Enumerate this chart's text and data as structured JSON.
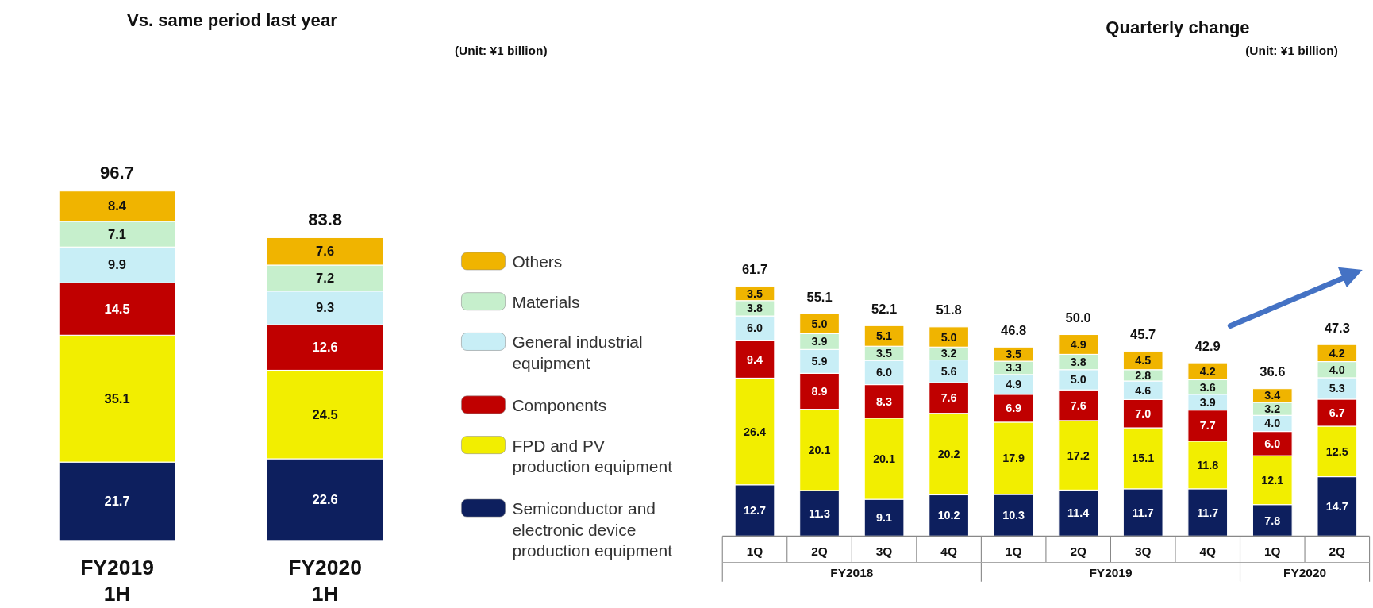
{
  "chart_data": [
    {
      "type": "bar",
      "title": "Vs. same period last year",
      "annotations": [
        "(Unit: ¥1 billion)"
      ],
      "categories": [
        "FY2019\n1H",
        "FY2020\n1H"
      ],
      "stacked": true,
      "data_labels": true,
      "legend": "right",
      "totals": [
        "96.7",
        "83.8"
      ],
      "series": [
        {
          "name": "Semiconductor and electronic device production equipment",
          "color": "#0d1f5e",
          "values": [
            21.7,
            22.6
          ]
        },
        {
          "name": "FPD and PV production equipment",
          "color": "#f2ee00",
          "values": [
            35.1,
            24.5
          ]
        },
        {
          "name": "Components",
          "color": "#c00000",
          "values": [
            14.5,
            12.6
          ]
        },
        {
          "name": "General industrial equipment",
          "color": "#c8eef6",
          "values": [
            9.9,
            9.3
          ]
        },
        {
          "name": "Materials",
          "color": "#c6efcc",
          "values": [
            7.1,
            7.2
          ]
        },
        {
          "name": "Others",
          "color": "#f0b400",
          "values": [
            8.4,
            7.6
          ]
        }
      ]
    },
    {
      "type": "bar",
      "title": "Quarterly change",
      "annotations": [
        "(Unit: ¥1 billion)",
        "FY2018",
        "FY2019",
        "FY2020"
      ],
      "categories": [
        "1Q",
        "2Q",
        "3Q",
        "4Q",
        "1Q",
        "2Q",
        "3Q",
        "4Q",
        "1Q",
        "2Q"
      ],
      "stacked": true,
      "legend": false,
      "totals": [
        "61.7",
        "55.1",
        "52.1",
        "51.8",
        "46.8",
        "50.0",
        "45.7",
        "42.9",
        "36.6",
        "47.3"
      ],
      "series": [
        {
          "color": "#0d1f5e",
          "values": [
            12.7,
            11.3,
            9.1,
            10.2,
            10.3,
            11.4,
            11.7,
            11.7,
            7.8,
            14.7
          ],
          "value_labels": [
            "12.7",
            "11.3",
            "9.1",
            "10.2",
            "10.3",
            "11.4",
            "11.7",
            "11.7",
            "7.8",
            "14.7"
          ]
        },
        {
          "color": "#f2ee00",
          "values": [
            26.4,
            20.1,
            20.1,
            20.2,
            17.9,
            17.2,
            15.1,
            11.8,
            12.1,
            12.5
          ],
          "value_labels": [
            "26.4",
            "20.1",
            "20.1",
            "20.2",
            "17.9",
            "17.2",
            "15.1",
            "11.8",
            "12.1",
            "12.5"
          ]
        },
        {
          "color": "#c00000",
          "values": [
            9.4,
            8.9,
            8.3,
            7.6,
            6.9,
            7.6,
            7.0,
            7.7,
            6.0,
            6.7
          ],
          "value_labels": [
            "9.4",
            "8.9",
            "8.3",
            "7.6",
            "6.9",
            "7.6",
            "7.0",
            "7.7",
            "6.0",
            "6.7"
          ]
        },
        {
          "color": "#c8eef6",
          "values": [
            6.0,
            5.9,
            6.0,
            5.6,
            4.9,
            5.0,
            4.6,
            3.9,
            4.0,
            5.3
          ],
          "value_labels": [
            "6.0",
            "5.9",
            "6.0",
            "5.6",
            "4.9",
            "5.0",
            "4.6",
            "3.9",
            "4.0",
            "5.3"
          ]
        },
        {
          "color": "#c6efcc",
          "values": [
            3.8,
            3.9,
            3.5,
            3.2,
            3.3,
            3.8,
            2.8,
            3.6,
            3.2,
            4.0
          ],
          "value_labels": [
            "3.8",
            "3.9",
            "3.5",
            "3.2",
            "3.3",
            "3.8",
            "2.8",
            "3.6",
            "3.2",
            "4.0"
          ]
        },
        {
          "color": "#f0b400",
          "values": [
            3.5,
            5.0,
            5.1,
            5.0,
            3.5,
            4.9,
            4.5,
            4.2,
            3.4,
            4.2
          ],
          "value_labels": [
            "3.5",
            "5.0",
            "5.1",
            "5.0",
            "3.5",
            "4.9",
            "4.5",
            "4.2",
            "3.4",
            "4.2"
          ]
        }
      ]
    }
  ]
}
